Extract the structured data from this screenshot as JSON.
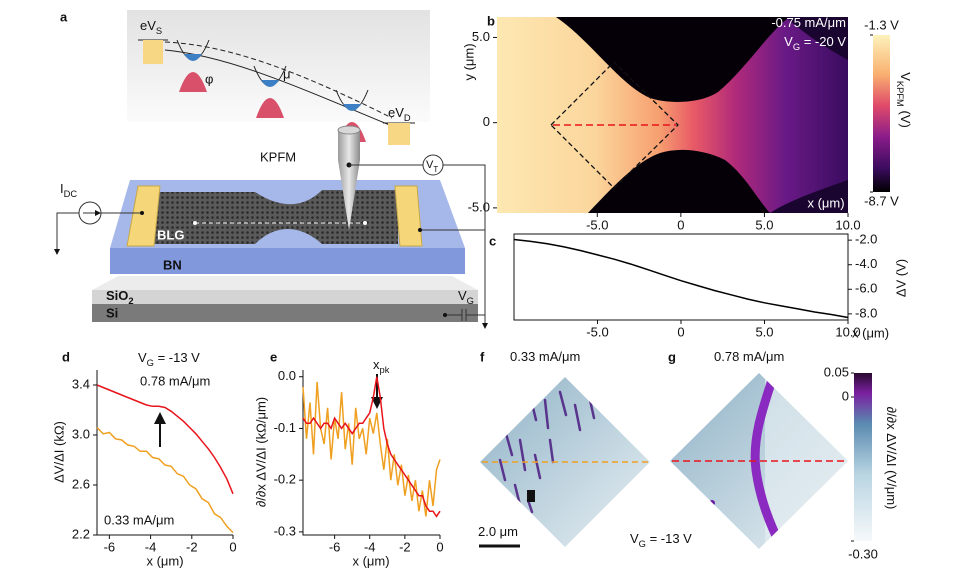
{
  "schematic": {
    "panel": "a",
    "eVS": [
      "eV",
      {
        "sub": "S"
      }
    ],
    "phi": "φ",
    "mu": "μ",
    "eVD": [
      "eV",
      {
        "sub": "D"
      }
    ],
    "kpfm": "KPFM",
    "VT": [
      "V",
      {
        "sub": "T"
      }
    ],
    "IDC": [
      "I",
      {
        "sub": "DC"
      }
    ],
    "blg": "BLG",
    "bn": "BN",
    "sio2": [
      "SiO",
      {
        "sub": "2"
      }
    ],
    "si": "Si",
    "VG": [
      "V",
      {
        "sub": "G"
      }
    ]
  },
  "chart_data": [
    {
      "type": "heatmap",
      "panel": "b",
      "xlim": [
        -11,
        10
      ],
      "ylim": [
        -5.3,
        6.2
      ],
      "xticks": [
        {
          "value": -5,
          "label": "-5.0"
        },
        0,
        {
          "value": 5,
          "label": "5.0"
        },
        {
          "value": 10,
          "label": "10.0"
        }
      ],
      "yticks": [
        {
          "value": 5,
          "label": "5.0"
        },
        0,
        {
          "value": -5,
          "label": "-5.0"
        }
      ],
      "x_label": "x (μm)",
      "y_label": "y (μm)",
      "annotations": [
        [
          "-0.75 mA/μm"
        ],
        [
          "V",
          {
            "sub": "G"
          },
          " = -20 V"
        ]
      ],
      "colorbar": {
        "clim": [
          -8.7,
          -1.3
        ],
        "ticks": [
          {
            "value": -1.3,
            "label": "-1.3 V"
          },
          {
            "value": -8.7,
            "label": "-8.7 V"
          }
        ],
        "label": [
          "V",
          {
            "sub": "KPFM"
          },
          " (V)"
        ]
      }
    },
    {
      "type": "line",
      "panel": "c",
      "xlim": [
        -10,
        10
      ],
      "ylim": [
        -8.5,
        -1.5
      ],
      "xticks": [
        {
          "value": -5,
          "label": "-5.0"
        },
        0,
        {
          "value": 5,
          "label": "5.0"
        },
        {
          "value": 10,
          "label": "10.0"
        }
      ],
      "yticks": [
        {
          "value": -2,
          "label": "-2.0"
        },
        {
          "value": -4,
          "label": "-4.0"
        },
        {
          "value": -6,
          "label": "-6.0"
        },
        {
          "value": -8,
          "label": "-8.0"
        }
      ],
      "x_label": "x (μm)",
      "y_label": "ΔV (V)",
      "x": [
        -10,
        -9,
        -8,
        -7,
        -6,
        -5,
        -4,
        -3,
        -2,
        -1,
        0,
        1,
        2,
        3,
        4,
        5,
        6,
        7,
        8,
        9,
        10
      ],
      "series": [
        {
          "color": "#000000",
          "values": [
            -1.95,
            -2.1,
            -2.3,
            -2.55,
            -2.85,
            -3.2,
            -3.55,
            -3.95,
            -4.4,
            -4.85,
            -5.3,
            -5.7,
            -6.1,
            -6.45,
            -6.8,
            -7.1,
            -7.35,
            -7.6,
            -7.85,
            -8.05,
            -8.3
          ]
        }
      ]
    },
    {
      "type": "line",
      "panel": "d",
      "xlim": [
        -6.6,
        0
      ],
      "ylim": [
        2.2,
        3.52
      ],
      "xticks": [
        -6,
        -4,
        -2,
        0
      ],
      "yticks": [
        3.4,
        {
          "value": 3.0,
          "label": "3.0"
        },
        2.6,
        2.2
      ],
      "x_label": "x (μm)",
      "y_label": "ΔV/ΔI (kΩ)",
      "annotations": [
        [
          "V",
          {
            "sub": "G"
          },
          " = -13 V"
        ]
      ],
      "x": [
        -6.6,
        -6.3,
        -6.0,
        -5.7,
        -5.4,
        -5.1,
        -4.8,
        -4.5,
        -4.2,
        -3.9,
        -3.6,
        -3.3,
        -3.0,
        -2.7,
        -2.4,
        -2.1,
        -1.8,
        -1.5,
        -1.2,
        -0.9,
        -0.6,
        -0.3,
        0
      ],
      "series": [
        {
          "name": "0.78 mA/μm",
          "color": "#e8141c",
          "values": [
            3.4,
            3.38,
            3.36,
            3.34,
            3.32,
            3.3,
            3.28,
            3.26,
            3.24,
            3.23,
            3.23,
            3.22,
            3.19,
            3.15,
            3.11,
            3.06,
            3.01,
            2.95,
            2.89,
            2.82,
            2.74,
            2.65,
            2.53
          ]
        },
        {
          "name": "0.33 mA/μm",
          "color": "#f0a020",
          "values": [
            3.06,
            3.01,
            3.02,
            2.97,
            2.96,
            2.92,
            2.91,
            2.87,
            2.87,
            2.82,
            2.81,
            2.76,
            2.75,
            2.69,
            2.67,
            2.6,
            2.57,
            2.49,
            2.46,
            2.37,
            2.34,
            2.27,
            2.22
          ]
        }
      ]
    },
    {
      "type": "line",
      "panel": "e",
      "xlim": [
        -7.8,
        0
      ],
      "ylim": [
        -0.306,
        0.013
      ],
      "xticks": [
        -6,
        -4,
        -2,
        0
      ],
      "yticks": [
        {
          "value": 0,
          "label": "0.0"
        },
        -0.1,
        -0.2,
        -0.3
      ],
      "x_label": "x (μm)",
      "y_label": "∂/∂x ΔV/ΔI (kΩ/μm)",
      "annotations": [
        [
          "x",
          {
            "sub": "pk"
          }
        ]
      ],
      "x": [
        -7.8,
        -7.6,
        -7.4,
        -7.2,
        -7.0,
        -6.8,
        -6.6,
        -6.4,
        -6.2,
        -6.0,
        -5.8,
        -5.6,
        -5.4,
        -5.2,
        -5.0,
        -4.8,
        -4.6,
        -4.4,
        -4.2,
        -4.0,
        -3.8,
        -3.6,
        -3.4,
        -3.2,
        -3.0,
        -2.8,
        -2.6,
        -2.4,
        -2.2,
        -2.0,
        -1.8,
        -1.6,
        -1.4,
        -1.2,
        -1.0,
        -0.8,
        -0.6,
        -0.4,
        -0.2,
        0
      ],
      "series": [
        {
          "color": "#f0a020",
          "values": [
            -0.02,
            -0.12,
            -0.05,
            -0.15,
            -0.01,
            -0.1,
            -0.13,
            -0.06,
            -0.16,
            -0.08,
            -0.12,
            -0.03,
            -0.14,
            -0.09,
            -0.17,
            -0.06,
            -0.12,
            -0.1,
            -0.15,
            -0.08,
            -0.11,
            -0.07,
            -0.13,
            -0.18,
            -0.12,
            -0.2,
            -0.15,
            -0.21,
            -0.17,
            -0.23,
            -0.19,
            -0.24,
            -0.2,
            -0.26,
            -0.22,
            -0.27,
            -0.2,
            -0.25,
            -0.18,
            -0.16
          ]
        },
        {
          "color": "#e8141c",
          "values": [
            -0.08,
            -0.09,
            -0.09,
            -0.08,
            -0.09,
            -0.1,
            -0.09,
            -0.09,
            -0.1,
            -0.08,
            -0.09,
            -0.1,
            -0.09,
            -0.1,
            -0.11,
            -0.1,
            -0.09,
            -0.09,
            -0.08,
            -0.07,
            -0.04,
            0.0,
            -0.04,
            -0.1,
            -0.13,
            -0.15,
            -0.16,
            -0.17,
            -0.18,
            -0.19,
            -0.2,
            -0.21,
            -0.22,
            -0.23,
            -0.23,
            -0.25,
            -0.26,
            -0.26,
            -0.27,
            -0.26
          ]
        }
      ]
    },
    {
      "type": "heatmap",
      "panel": "f",
      "annotations": [
        [
          "0.33 mA/μm"
        ],
        [
          "2.0 μm"
        ]
      ]
    },
    {
      "type": "heatmap",
      "panel": "g",
      "annotations": [
        [
          "0.78 mA/μm"
        ],
        [
          "V",
          {
            "sub": "G"
          },
          " = -13 V"
        ]
      ],
      "colorbar": {
        "clim": [
          -0.3,
          0.05
        ],
        "ticks": [
          0.05,
          0,
          {
            "value": -0.3,
            "label": "-0.30"
          }
        ],
        "label": [
          "∂/∂x ΔV/ΔI (V/μm)"
        ]
      }
    }
  ]
}
